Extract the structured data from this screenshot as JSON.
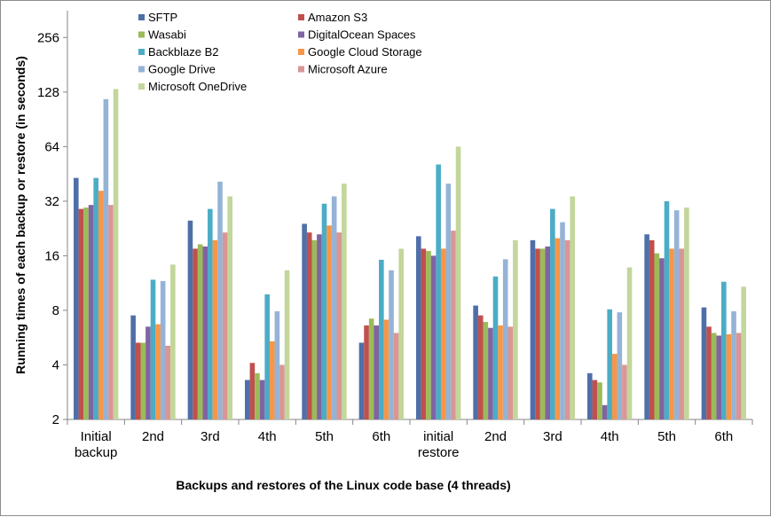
{
  "chart_data": {
    "type": "bar",
    "ylabel": "Running times  of each backup or restore (in seconds)",
    "xlabel": "Backups and restores of the Linux code base (4 threads)",
    "y_scale": "log2",
    "ylim": [
      2,
      360
    ],
    "y_ticks": [
      2,
      4,
      8,
      16,
      32,
      64,
      128,
      256
    ],
    "grid": false,
    "legend_position": "top-left",
    "categories": [
      [
        "Initial",
        "backup"
      ],
      [
        "2nd"
      ],
      [
        "3rd"
      ],
      [
        "4th"
      ],
      [
        "5th"
      ],
      [
        "6th"
      ],
      [
        "initial",
        "restore"
      ],
      [
        "2nd"
      ],
      [
        "3rd"
      ],
      [
        "4th"
      ],
      [
        "5th"
      ],
      [
        "6th"
      ]
    ],
    "series": [
      {
        "name": "SFTP",
        "color": "#4f6fa8",
        "values": [
          43,
          7.5,
          25,
          3.3,
          24,
          5.3,
          20.5,
          8.5,
          19.5,
          3.6,
          21,
          8.3
        ]
      },
      {
        "name": "Amazon S3",
        "color": "#c0504d",
        "values": [
          29,
          5.3,
          17.5,
          4.1,
          21.5,
          6.6,
          17.5,
          7.5,
          17.5,
          3.3,
          19.5,
          6.5
        ]
      },
      {
        "name": "Wasabi",
        "color": "#9bbb59",
        "values": [
          29.5,
          5.3,
          18.5,
          3.6,
          19.5,
          7.2,
          17,
          6.9,
          17.5,
          3.2,
          16.5,
          6
        ]
      },
      {
        "name": "DigitalOcean Spaces",
        "color": "#8064a2",
        "values": [
          30.5,
          6.5,
          18,
          3.3,
          21,
          6.6,
          16,
          6.4,
          18,
          2.4,
          15.5,
          5.8
        ]
      },
      {
        "name": "Backblaze B2",
        "color": "#4bacc6",
        "values": [
          43,
          11.8,
          29,
          9.8,
          31,
          15.2,
          51,
          12.3,
          29,
          8.1,
          32,
          11.5
        ]
      },
      {
        "name": "Google Cloud Storage",
        "color": "#f79646",
        "values": [
          36.5,
          6.7,
          19.5,
          5.4,
          23.5,
          7.1,
          17.5,
          6.6,
          20,
          4.6,
          17.5,
          5.9
        ]
      },
      {
        "name": "Google Drive",
        "color": "#95b3d7",
        "values": [
          117,
          11.6,
          41,
          7.9,
          34,
          13.3,
          40,
          15.3,
          24.5,
          7.8,
          28.5,
          7.9
        ]
      },
      {
        "name": "Microsoft Azure",
        "color": "#d99694",
        "values": [
          30.5,
          5.1,
          21.5,
          4,
          21.5,
          6,
          22,
          6.5,
          19.5,
          4,
          17.5,
          6
        ]
      },
      {
        "name": "Microsoft OneDrive",
        "color": "#c3d69b",
        "values": [
          133,
          14.3,
          34,
          13.3,
          40,
          17.5,
          64,
          19.5,
          34,
          13.8,
          29.5,
          10.8
        ]
      }
    ]
  }
}
